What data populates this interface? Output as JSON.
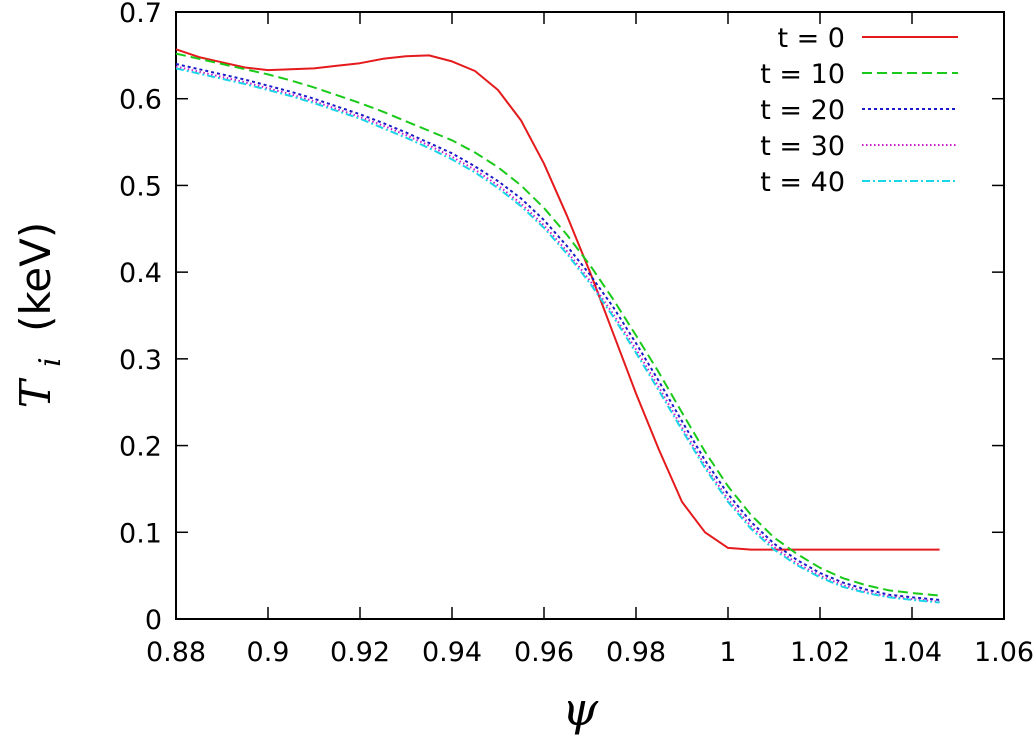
{
  "chart_data": {
    "type": "line",
    "xlabel": "ψ",
    "ylabel": {
      "main": "T",
      "subscript": "i",
      "unit": "(keV)"
    },
    "xlim": [
      0.88,
      1.06
    ],
    "ylim": [
      0,
      0.7
    ],
    "xticks": [
      0.88,
      0.9,
      0.92,
      0.94,
      0.96,
      0.98,
      1,
      1.02,
      1.04,
      1.06
    ],
    "xtick_labels": [
      "0.88",
      "0.9",
      "0.92",
      "0.94",
      "0.96",
      "0.98",
      "1",
      "1.02",
      "1.04",
      "1.06"
    ],
    "yticks": [
      0,
      0.1,
      0.2,
      0.3,
      0.4,
      0.5,
      0.6,
      0.7
    ],
    "ytick_labels": [
      "0",
      "0.1",
      "0.2",
      "0.3",
      "0.4",
      "0.5",
      "0.6",
      "0.7"
    ],
    "grid": false,
    "legend_position": "top-right",
    "series": [
      {
        "name": "t = 0",
        "color": "#e41a1c",
        "dash": "solid",
        "x": [
          0.88,
          0.885,
          0.89,
          0.895,
          0.9,
          0.905,
          0.91,
          0.915,
          0.92,
          0.925,
          0.93,
          0.935,
          0.94,
          0.945,
          0.95,
          0.955,
          0.96,
          0.965,
          0.97,
          0.975,
          0.98,
          0.985,
          0.99,
          0.995,
          1.0,
          1.005,
          1.01,
          1.02,
          1.03,
          1.04,
          1.046
        ],
        "y": [
          0.657,
          0.648,
          0.642,
          0.636,
          0.633,
          0.634,
          0.635,
          0.638,
          0.641,
          0.646,
          0.649,
          0.65,
          0.643,
          0.632,
          0.61,
          0.575,
          0.525,
          0.465,
          0.4,
          0.33,
          0.26,
          0.195,
          0.135,
          0.1,
          0.082,
          0.08,
          0.08,
          0.08,
          0.08,
          0.08,
          0.08
        ]
      },
      {
        "name": "t = 10",
        "color": "#1aca1a",
        "dash": "10,5",
        "x": [
          0.88,
          0.885,
          0.89,
          0.895,
          0.9,
          0.905,
          0.91,
          0.915,
          0.92,
          0.925,
          0.93,
          0.935,
          0.94,
          0.945,
          0.95,
          0.955,
          0.96,
          0.965,
          0.97,
          0.975,
          0.98,
          0.985,
          0.99,
          0.995,
          1.0,
          1.005,
          1.01,
          1.015,
          1.02,
          1.025,
          1.03,
          1.035,
          1.04,
          1.046
        ],
        "y": [
          0.652,
          0.646,
          0.64,
          0.634,
          0.628,
          0.621,
          0.613,
          0.604,
          0.595,
          0.585,
          0.574,
          0.563,
          0.552,
          0.538,
          0.521,
          0.5,
          0.474,
          0.443,
          0.408,
          0.369,
          0.327,
          0.284,
          0.238,
          0.193,
          0.153,
          0.12,
          0.094,
          0.075,
          0.059,
          0.047,
          0.039,
          0.033,
          0.03,
          0.027
        ]
      },
      {
        "name": "t = 20",
        "color": "#1a1ac8",
        "dash": "3,3",
        "x": [
          0.88,
          0.885,
          0.89,
          0.895,
          0.9,
          0.905,
          0.91,
          0.915,
          0.92,
          0.925,
          0.93,
          0.935,
          0.94,
          0.945,
          0.95,
          0.955,
          0.96,
          0.965,
          0.97,
          0.975,
          0.98,
          0.985,
          0.99,
          0.995,
          1.0,
          1.005,
          1.01,
          1.015,
          1.02,
          1.025,
          1.03,
          1.035,
          1.04,
          1.046
        ],
        "y": [
          0.64,
          0.634,
          0.628,
          0.622,
          0.615,
          0.608,
          0.6,
          0.591,
          0.582,
          0.572,
          0.561,
          0.549,
          0.537,
          0.522,
          0.505,
          0.485,
          0.46,
          0.43,
          0.397,
          0.36,
          0.318,
          0.274,
          0.228,
          0.183,
          0.144,
          0.112,
          0.087,
          0.068,
          0.053,
          0.042,
          0.034,
          0.028,
          0.025,
          0.022
        ]
      },
      {
        "name": "t = 30",
        "color": "#cc1acc",
        "dash": "1.5,2.5",
        "x": [
          0.88,
          0.885,
          0.89,
          0.895,
          0.9,
          0.905,
          0.91,
          0.915,
          0.92,
          0.925,
          0.93,
          0.935,
          0.94,
          0.945,
          0.95,
          0.955,
          0.96,
          0.965,
          0.97,
          0.975,
          0.98,
          0.985,
          0.99,
          0.995,
          1.0,
          1.005,
          1.01,
          1.015,
          1.02,
          1.025,
          1.03,
          1.035,
          1.04,
          1.046
        ],
        "y": [
          0.637,
          0.631,
          0.625,
          0.619,
          0.612,
          0.605,
          0.597,
          0.588,
          0.579,
          0.569,
          0.558,
          0.546,
          0.533,
          0.518,
          0.5,
          0.479,
          0.454,
          0.424,
          0.39,
          0.352,
          0.311,
          0.267,
          0.221,
          0.177,
          0.138,
          0.107,
          0.083,
          0.064,
          0.05,
          0.039,
          0.031,
          0.026,
          0.023,
          0.02
        ]
      },
      {
        "name": "t = 40",
        "color": "#1ad6e6",
        "dash": "8,3,2,3",
        "x": [
          0.88,
          0.885,
          0.89,
          0.895,
          0.9,
          0.905,
          0.91,
          0.915,
          0.92,
          0.925,
          0.93,
          0.935,
          0.94,
          0.945,
          0.95,
          0.955,
          0.96,
          0.965,
          0.97,
          0.975,
          0.98,
          0.985,
          0.99,
          0.995,
          1.0,
          1.005,
          1.01,
          1.015,
          1.02,
          1.025,
          1.03,
          1.035,
          1.04,
          1.046
        ],
        "y": [
          0.635,
          0.629,
          0.623,
          0.617,
          0.61,
          0.603,
          0.595,
          0.586,
          0.577,
          0.566,
          0.555,
          0.543,
          0.53,
          0.515,
          0.497,
          0.476,
          0.451,
          0.421,
          0.387,
          0.349,
          0.307,
          0.263,
          0.218,
          0.174,
          0.135,
          0.104,
          0.08,
          0.062,
          0.048,
          0.037,
          0.03,
          0.025,
          0.022,
          0.019
        ]
      }
    ]
  }
}
